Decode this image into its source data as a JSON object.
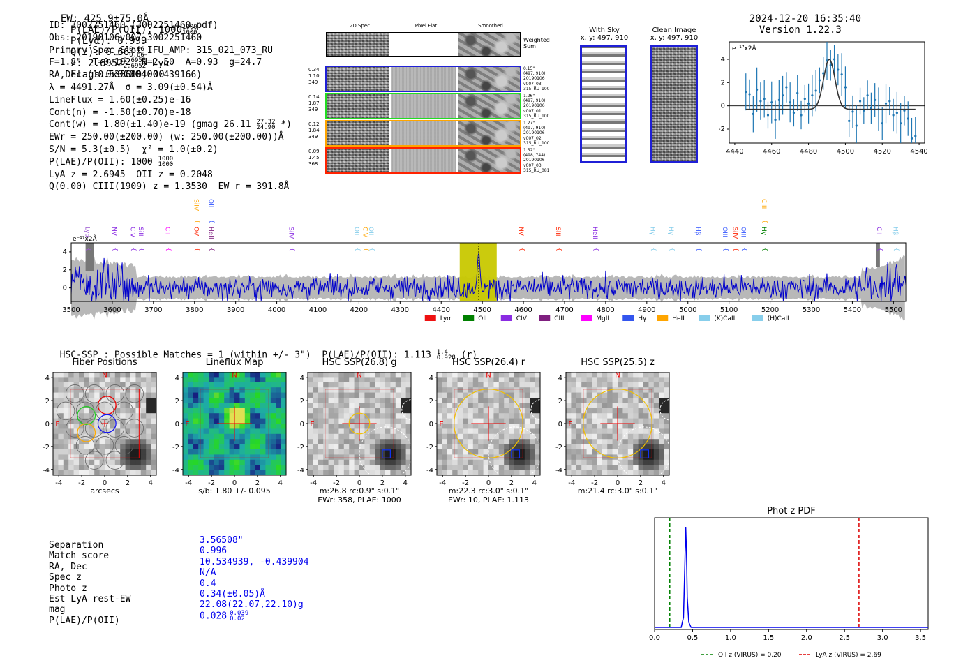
{
  "header": {
    "ew": "EW: 425.9±75.0Å",
    "plae_label": "P(LAE)/P(OII): 1000",
    "plae_up": "1000",
    "plae_lo": "1000",
    "plya": "P(Lyα): 0.999",
    "qz_label": "Q(z): 0.66",
    "qz_up": "0.66",
    "qz_lo": "0.66",
    "z_label": "z: 2.6952",
    "z_up": "2.6952",
    "z_lo": "2.6952",
    "z_line": "Lyα",
    "flags": "Flags:0x00004000",
    "datetime": "2024-12-20 16:35:40",
    "version": "Version 1.22.3"
  },
  "info": {
    "id": "ID: 3002251460 (3002251460.pdf)",
    "obs": "Obs: 20190106v007_3002251460",
    "primary": "Primary Spec_Slot_IFU_AMP: 315_021_073_RU",
    "fline": "F=1.8\"  T=0.102  N=2.50  A=0.93  g=24.7",
    "radec": "RA,Dec (10.535600,-0.439166)",
    "lambda": "λ = 4491.27Å  σ = 3.09(±0.54)Å",
    "lineflux": "LineFlux = 1.60(±0.25)e-16",
    "contn": "Cont(n) = -1.50(±0.70)e-18",
    "contw": "Cont(w) = 1.80(±1.40)e-19 (gmag 26.11",
    "contw_up": "27.32",
    "contw_lo": "24.90",
    "contw_end": "*)",
    "ewr": "EWr = 250.00(±200.00) (w: 250.00(±200.00))Å",
    "sn": "S/N = 5.3(±0.5)  χ² = 1.0(±0.2)",
    "plae": "P(LAE)/P(OII): 1000",
    "plae_up": "1000",
    "plae_lo": "1000",
    "lyaz": "LyA z = 2.6945  OII z = 0.2048",
    "qciii": "Q(0.00) CIII(1909) z = 1.3530  EW r = 391.8Å"
  },
  "spec2d": {
    "col_labels": [
      "2D Spec",
      "Pixel Flat",
      "Smoothed"
    ],
    "weighted": "Weighted Sum",
    "rows": [
      {
        "left": [
          "0.34",
          "1.10",
          "349"
        ],
        "right": [
          "0.15\"",
          "(497, 910)",
          "20190106",
          "v007_03",
          "315_RU_100"
        ],
        "color": "#1f1fd6"
      },
      {
        "left": [
          "0.14",
          "1.87",
          "349"
        ],
        "right": [
          "1.26\"",
          "(497, 910)",
          "20190106",
          "v007_01",
          "315_RU_100"
        ],
        "color": "#22dd22"
      },
      {
        "left": [
          "0.12",
          "1.84",
          "349"
        ],
        "right": [
          "1.27\"",
          "(497, 910)",
          "20190106",
          "v007_02",
          "315_RU_100"
        ],
        "color": "#ffa500"
      },
      {
        "left": [
          "0.09",
          "1.45",
          "368"
        ],
        "right": [
          "1.52\"",
          "(498, 744)",
          "20190106",
          "v007_03",
          "315_RU_081"
        ],
        "color": "#ff2200"
      }
    ]
  },
  "sky": {
    "with_sky_title": "With Sky",
    "with_sky_xy": "x, y: 497, 910",
    "clean_title": "Clean Image",
    "clean_xy": "x, y: 497, 910"
  },
  "zoom_chart": {
    "ylabel": "e⁻¹⁷x2Å",
    "xticks": [
      "4440",
      "4460",
      "4480",
      "4500",
      "4520",
      "4540"
    ],
    "yticks": [
      "4",
      "2",
      "0",
      "-2"
    ]
  },
  "full_spectrum": {
    "ylabel": "e⁻¹⁷x2Å",
    "xticks": [
      "3500",
      "3600",
      "3700",
      "3800",
      "3900",
      "4000",
      "4100",
      "4200",
      "4300",
      "4400",
      "4500",
      "4600",
      "4700",
      "4800",
      "4900",
      "5000",
      "5100",
      "5200",
      "5300",
      "5400",
      "5500"
    ],
    "yticks": [
      "4",
      "2",
      "0"
    ],
    "line_labels": [
      {
        "t": "Lyα",
        "c": "#9b59d0",
        "w": 3535,
        "tier": 0
      },
      {
        "t": "NV",
        "c": "#8a2be2",
        "w": 3600,
        "tier": 1
      },
      {
        "t": "CIV",
        "c": "#8a2be2",
        "w": 3645,
        "tier": 1
      },
      {
        "t": "SiII",
        "c": "#8a2be2",
        "w": 3665,
        "tier": 1
      },
      {
        "t": "CII",
        "c": "#ff00ff",
        "w": 3730,
        "tier": 1
      },
      {
        "t": "SiIV",
        "c": "#ffa500",
        "w": 3800,
        "tier": 3
      },
      {
        "t": "OII",
        "c": "#3355ff",
        "w": 3835,
        "tier": 3
      },
      {
        "t": "OVI",
        "c": "#ff2200",
        "w": 3800,
        "tier": 1
      },
      {
        "t": "HeII",
        "c": "#7f1f7f",
        "w": 3835,
        "tier": 1
      },
      {
        "t": "SiIV",
        "c": "#8a2be2",
        "w": 4030,
        "tier": 1
      },
      {
        "t": "OII",
        "c": "#87ceeb",
        "w": 4190,
        "tier": 1
      },
      {
        "t": "CIV",
        "c": "#ffa500",
        "w": 4210,
        "tier": 1
      },
      {
        "t": "OII",
        "c": "#87ceeb",
        "w": 4225,
        "tier": 1
      },
      {
        "t": "NV",
        "c": "#ff2200",
        "w": 4590,
        "tier": 1
      },
      {
        "t": "SiII",
        "c": "#ff2200",
        "w": 4680,
        "tier": 1
      },
      {
        "t": "HeII",
        "c": "#8a2be2",
        "w": 4770,
        "tier": 1
      },
      {
        "t": "Hγ",
        "c": "#87ceeb",
        "w": 4910,
        "tier": 1
      },
      {
        "t": "Hγ",
        "c": "#87ceeb",
        "w": 4955,
        "tier": 1
      },
      {
        "t": "Hβ",
        "c": "#3355ff",
        "w": 5020,
        "tier": 1
      },
      {
        "t": "OIII",
        "c": "#3355ff",
        "w": 5085,
        "tier": 1
      },
      {
        "t": "SiIV",
        "c": "#ff2200",
        "w": 5110,
        "tier": 1
      },
      {
        "t": "OIII",
        "c": "#3355ff",
        "w": 5130,
        "tier": 1
      },
      {
        "t": "CIII",
        "c": "#ffa500",
        "w": 5180,
        "tier": 3
      },
      {
        "t": "Hγ",
        "c": "#008000",
        "w": 5180,
        "tier": 1
      },
      {
        "t": "CII",
        "c": "#8a2be2",
        "w": 5460,
        "tier": 1
      },
      {
        "t": "Hβ",
        "c": "#87ceeb",
        "w": 5500,
        "tier": 1
      }
    ],
    "legend": [
      {
        "label": "Lyα",
        "color": "#ee1111"
      },
      {
        "label": "OII",
        "color": "#008000"
      },
      {
        "label": "CIV",
        "color": "#8a2be2"
      },
      {
        "label": "CIII",
        "color": "#7f1f7f"
      },
      {
        "label": "MgII",
        "color": "#ff00ff"
      },
      {
        "label": "Hγ",
        "color": "#3355ee"
      },
      {
        "label": "HeII",
        "color": "#ffa500"
      },
      {
        "label": "(K)CaII",
        "color": "#87ceeb"
      },
      {
        "label": "(H)CaII",
        "color": "#87ceeb"
      }
    ]
  },
  "hsc": {
    "heading": "HSC-SSP : Possible Matches = 1 (within +/- 3\")  P(LAE)/P(OII): 1.113",
    "heading_up": "1.4",
    "heading_lo": "0.928",
    "heading_end": "(r)",
    "panels": [
      {
        "title": "Fiber Positions",
        "cap1": "arcsecs",
        "cap2": ""
      },
      {
        "title": "Lineflux Map",
        "cap1": "s/b: 1.80 +/- 0.095",
        "cap2": ""
      },
      {
        "title": "HSC SSP(26.8) g",
        "cap1": "m:26.8 rc:0.9\"  s:0.1\"",
        "cap2": "EWr: 358, PLAE: 1000"
      },
      {
        "title": "HSC SSP(26.4) r",
        "cap1": "m:22.3 rc:3.0\"  s:0.1\"",
        "cap2": "EWr: 10, PLAE: 1.113"
      },
      {
        "title": "HSC SSP(25.5) z",
        "cap1": "m:21.4 rc:3.0\"  s:0.1\"",
        "cap2": ""
      }
    ],
    "axis_ticks": [
      "-4",
      "-2",
      "0",
      "2",
      "4"
    ],
    "y_ticks": [
      "4",
      "2",
      "0",
      "-2",
      "-4"
    ],
    "n_label": "N",
    "e_label": "E"
  },
  "match": {
    "labels": [
      "Separation",
      "Match score",
      "RA, Dec",
      "Spec z",
      "Photo z",
      "Est LyA rest-EW",
      "mag",
      "P(LAE)/P(OII)"
    ],
    "values": [
      "3.56508\"",
      "0.996",
      "10.534939, -0.439904",
      "N/A",
      "0.4",
      "0.34(±0.05)Å",
      "22.08(22.07,22.10)g",
      "0.028"
    ],
    "plae_up": "0.039",
    "plae_lo": "0.02"
  },
  "chart_data": [
    {
      "type": "line",
      "title": "",
      "ylabel": "e-17 x2Å",
      "xlim": [
        4437,
        4543
      ],
      "ylim": [
        -3.2,
        5.5
      ],
      "x": [
        4446,
        4448,
        4450,
        4452,
        4454,
        4456,
        4458,
        4460,
        4462,
        4464,
        4466,
        4468,
        4470,
        4472,
        4474,
        4476,
        4478,
        4480,
        4482,
        4484,
        4486,
        4488,
        4490,
        4492,
        4494,
        4496,
        4498,
        4500,
        4502,
        4504,
        4506,
        4508,
        4510,
        4512,
        4514,
        4516,
        4518,
        4520,
        4522,
        4524,
        4526,
        4528,
        4530,
        4532,
        4534,
        4536,
        4538
      ],
      "values": [
        1.2,
        1.0,
        -0.7,
        1.4,
        0.4,
        0.6,
        -0.8,
        0.3,
        -1.2,
        0.5,
        0.9,
        1.6,
        0.3,
        -0.6,
        1.1,
        -0.8,
        0.6,
        0.2,
        0.9,
        1.3,
        2.2,
        2.8,
        3.9,
        3.5,
        4.0,
        3.1,
        2.7,
        1.6,
        -1.3,
        -0.5,
        -1.7,
        0.4,
        -0.4,
        0.9,
        -0.2,
        0.5,
        -0.3,
        -1.5,
        0.2,
        0.4,
        -0.8,
        -0.6,
        -1.5,
        -0.4,
        -1.1,
        -2.8,
        -2.6
      ],
      "fit_gaussian": {
        "mu": 4491.27,
        "sigma": 3.09,
        "amp": 4.3,
        "base": -0.3
      },
      "xticks": [
        4440,
        4460,
        4480,
        4500,
        4520,
        4540
      ]
    },
    {
      "type": "line",
      "title": "",
      "xlabel": "",
      "ylabel": "e-17 x2Å",
      "xlim": [
        3500,
        5530
      ],
      "ylim": [
        -1.5,
        5.0
      ],
      "highlight_window": [
        4445,
        4535
      ],
      "line_marker": 4491.27,
      "series": [
        {
          "name": "flux",
          "color": "#0000cc"
        },
        {
          "name": "error",
          "color": "#aaaaaa"
        }
      ]
    },
    {
      "type": "line",
      "title": "Phot z PDF",
      "xlim": [
        0.0,
        3.6
      ],
      "xticks": [
        "0.0",
        "0.5",
        "1.0",
        "1.5",
        "2.0",
        "2.5",
        "3.0",
        "3.5"
      ],
      "x": [
        0.0,
        0.35,
        0.38,
        0.4,
        0.41,
        0.42,
        0.43,
        0.45,
        0.48,
        3.6
      ],
      "values": [
        0,
        0,
        0.1,
        0.7,
        1.0,
        0.75,
        0.3,
        0.05,
        0,
        0
      ],
      "vlines": [
        {
          "x": 0.2,
          "label": "OII z (VIRUS) = 0.20",
          "color": "#008000"
        },
        {
          "x": 2.69,
          "label": "LyA z (VIRUS) = 2.69",
          "color": "#dd0000"
        }
      ]
    }
  ]
}
